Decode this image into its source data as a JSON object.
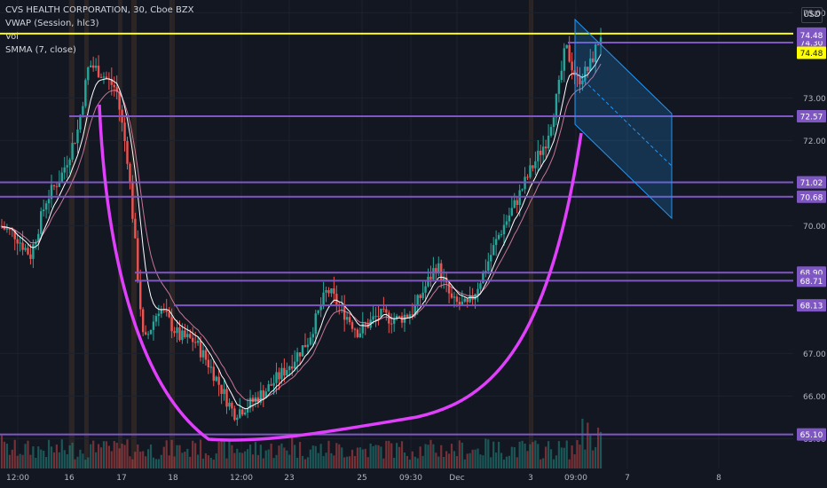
{
  "header": {
    "symbol_line": "CVS HEALTH CORPORATION, 30, Cboe BZX",
    "indicators": [
      "VWAP (Session, hlc3)",
      "Vol",
      "SMMA (7, close)"
    ],
    "currency": "USD"
  },
  "colors": {
    "background": "#131722",
    "grid": "#1e222d",
    "up_candle": "#26a69a",
    "down_candle": "#ef5350",
    "vwap": "#ffffff",
    "smma": "#f48fb1",
    "level_line": "#7e57c2",
    "top_level_line": "#ffff00",
    "cup_curve": "#e040fb",
    "channel": "#2196f3",
    "session_band": "#8d5a2b"
  },
  "chart_data": {
    "type": "candlestick",
    "x_ticks": [
      "12:00",
      "16",
      "17",
      "18",
      "12:00",
      "23",
      "25",
      "09:30",
      "Dec",
      "3",
      "09:00",
      "7",
      "8"
    ],
    "y_ticks": [
      75.0,
      73.0,
      72.0,
      70.0,
      67.0,
      66.0,
      65.0
    ],
    "y_range": [
      64.3,
      75.3
    ],
    "horizontal_levels": [
      {
        "label": "74.51",
        "value": 74.51,
        "style": "top"
      },
      {
        "label": "74.30",
        "value": 74.3,
        "style": "level"
      },
      {
        "label": "72.57",
        "value": 72.57,
        "style": "level"
      },
      {
        "label": "71.02",
        "value": 71.02,
        "style": "level"
      },
      {
        "label": "70.68",
        "value": 70.68,
        "style": "level"
      },
      {
        "label": "68.90",
        "value": 68.9,
        "style": "level"
      },
      {
        "label": "68.71",
        "value": 68.71,
        "style": "level"
      },
      {
        "label": "68.13",
        "value": 68.13,
        "style": "level"
      },
      {
        "label": "65.10",
        "value": 65.1,
        "style": "level"
      }
    ],
    "price_tags": [
      {
        "label": "74.48",
        "value": 74.48,
        "style": "current"
      },
      {
        "label": "74.48",
        "value": 74.06,
        "style": "last"
      }
    ],
    "price_path_keypoints": [
      [
        0,
        70.0
      ],
      [
        0.02,
        69.8
      ],
      [
        0.04,
        69.3
      ],
      [
        0.06,
        70.6
      ],
      [
        0.08,
        71.2
      ],
      [
        0.1,
        72.2
      ],
      [
        0.115,
        73.8
      ],
      [
        0.13,
        73.6
      ],
      [
        0.15,
        73.2
      ],
      [
        0.165,
        71.5
      ],
      [
        0.185,
        67.2
      ],
      [
        0.205,
        68.1
      ],
      [
        0.23,
        67.4
      ],
      [
        0.25,
        67.3
      ],
      [
        0.27,
        66.7
      ],
      [
        0.3,
        65.6
      ],
      [
        0.32,
        65.8
      ],
      [
        0.345,
        66.2
      ],
      [
        0.37,
        66.7
      ],
      [
        0.395,
        67.3
      ],
      [
        0.42,
        68.5
      ],
      [
        0.44,
        68.0
      ],
      [
        0.46,
        67.5
      ],
      [
        0.485,
        67.9
      ],
      [
        0.51,
        67.8
      ],
      [
        0.53,
        68.0
      ],
      [
        0.56,
        69.1
      ],
      [
        0.58,
        68.2
      ],
      [
        0.6,
        68.1
      ],
      [
        0.62,
        68.9
      ],
      [
        0.64,
        69.8
      ],
      [
        0.66,
        70.5
      ],
      [
        0.68,
        71.3
      ],
      [
        0.7,
        72.0
      ],
      [
        0.715,
        73.1
      ],
      [
        0.725,
        74.2
      ],
      [
        0.74,
        73.4
      ],
      [
        0.755,
        73.7
      ],
      [
        0.77,
        74.5
      ]
    ]
  }
}
